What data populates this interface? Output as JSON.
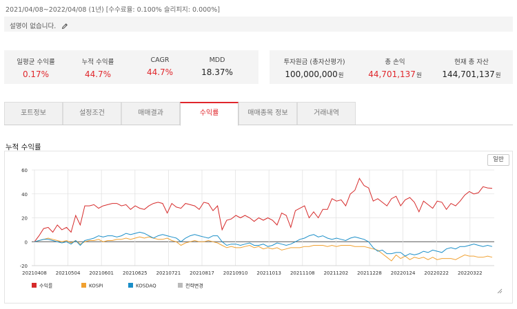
{
  "header": {
    "period": "2021/04/08~2022/04/08 (1년) [수수료율: 0.100% 슬리피지: 0.000%]",
    "description": "설명이 없습니다.",
    "edit_icon": "pencil-icon"
  },
  "stats": {
    "left": [
      {
        "label": "일평균 수익률",
        "value": "0.17%",
        "color": "#e0262b"
      },
      {
        "label": "누적 수익률",
        "value": "44.7%",
        "color": "#e0262b"
      },
      {
        "label": "CAGR",
        "value": "44.7%",
        "color": "#e0262b"
      },
      {
        "label": "MDD",
        "value": "18.37%",
        "color": "#222222"
      }
    ],
    "right": [
      {
        "label": "투자원금 (총자산평가)",
        "value": "100,000,000",
        "unit": "원",
        "color": "#222222"
      },
      {
        "label": "총 손익",
        "value": "44,701,137",
        "unit": "원",
        "color": "#e0262b"
      },
      {
        "label": "현재 총 자산",
        "value": "144,701,137",
        "unit": "원",
        "color": "#222222"
      }
    ]
  },
  "tabs": [
    {
      "label": "포트정보",
      "active": false
    },
    {
      "label": "설정조건",
      "active": false
    },
    {
      "label": "매매결과",
      "active": false
    },
    {
      "label": "수익률",
      "active": true
    },
    {
      "label": "매매종목 정보",
      "active": false
    },
    {
      "label": "거래내역",
      "active": false
    }
  ],
  "section_title": "누적 수익률",
  "normal_button": "일반",
  "colors": {
    "accent": "#e0262b",
    "return": "#d62a2a",
    "kospi": "#f0a030",
    "kosdaq": "#1a8ec8",
    "strategy_change": "#bbbbbb"
  },
  "chart_data": {
    "type": "line",
    "title": "누적 수익률",
    "x_ticks": [
      "20210408",
      "20210504",
      "20210601",
      "20210625",
      "20210721",
      "20210817",
      "20210910",
      "20211013",
      "20211108",
      "20211202",
      "20211228",
      "20220124",
      "20220222",
      "20220322"
    ],
    "ylim": [
      -20,
      60
    ],
    "y_ticks": [
      -20,
      0,
      20,
      40,
      60
    ],
    "grid": true,
    "legend_position": "bottom-left",
    "legend": [
      "수익률",
      "KOSPI",
      "KOSDAQ",
      "전략변경"
    ],
    "series": [
      {
        "name": "수익률",
        "color": "#d62a2a",
        "values": [
          0,
          5,
          11,
          12,
          8,
          14,
          10,
          12,
          8,
          22,
          14,
          30,
          30,
          31,
          28,
          30,
          31,
          32,
          32,
          30,
          31,
          27,
          30,
          28,
          27,
          30,
          32,
          33,
          32,
          24,
          32,
          29,
          28,
          32,
          31,
          30,
          27,
          33,
          32,
          26,
          30,
          10,
          18,
          19,
          22,
          20,
          22,
          20,
          17,
          20,
          18,
          20,
          18,
          14,
          24,
          22,
          12,
          26,
          28,
          30,
          20,
          25,
          20,
          27,
          27,
          36,
          34,
          35,
          30,
          40,
          43,
          53,
          47,
          45,
          34,
          36,
          33,
          30,
          36,
          38,
          30,
          35,
          37,
          33,
          25,
          34,
          31,
          28,
          34,
          33,
          27,
          32,
          30,
          34,
          39,
          42,
          40,
          41,
          46,
          45,
          44.7
        ]
      },
      {
        "name": "KOSPI",
        "color": "#f0a030",
        "values": [
          0,
          1,
          2,
          3,
          2,
          1,
          0,
          1,
          -1,
          1,
          -2,
          0,
          1,
          1,
          2,
          0,
          1,
          1,
          2,
          2,
          3,
          2,
          3,
          4,
          3,
          4,
          3,
          2,
          2,
          3,
          1,
          0,
          -3,
          -1,
          0,
          1,
          0,
          0,
          1,
          0,
          -1,
          -3,
          -5,
          -4,
          -5,
          -5,
          -4,
          -3,
          -5,
          -4,
          -6,
          -5,
          -6,
          -5,
          -7,
          -6,
          -5,
          -5,
          -5,
          -4,
          -4,
          -3,
          -3,
          -3,
          -4,
          -3,
          -4,
          -3,
          -3,
          -3,
          -4,
          -4,
          -4,
          -5,
          -6,
          -7,
          -10,
          -13,
          -16,
          -11,
          -14,
          -12,
          -15,
          -13,
          -14,
          -13,
          -15,
          -13,
          -15,
          -14,
          -14,
          -14,
          -15,
          -13,
          -11,
          -12,
          -12,
          -13,
          -13,
          -12,
          -13
        ]
      },
      {
        "name": "KOSDAQ",
        "color": "#1a8ec8",
        "values": [
          0,
          1,
          2,
          2,
          1,
          0,
          -1,
          0,
          -2,
          1,
          -3,
          1,
          2,
          3,
          5,
          4,
          5,
          5,
          4,
          5,
          7,
          6,
          7,
          8,
          7,
          5,
          3,
          5,
          6,
          5,
          4,
          3,
          0,
          3,
          5,
          6,
          5,
          4,
          3,
          5,
          5,
          0,
          -3,
          -2,
          -2,
          -3,
          -2,
          -1,
          -3,
          -3,
          -2,
          -4,
          -3,
          -1,
          -2,
          -3,
          -2,
          0,
          2,
          3,
          5,
          6,
          4,
          5,
          3,
          2,
          3,
          2,
          1,
          3,
          4,
          3,
          2,
          0,
          -5,
          -8,
          -7,
          -10,
          -10,
          -9,
          -9,
          -12,
          -10,
          -11,
          -10,
          -8,
          -9,
          -7,
          -8,
          -9,
          -6,
          -5,
          -6,
          -4,
          -4,
          -3,
          -2,
          -3,
          -4,
          -3,
          -4
        ]
      }
    ]
  }
}
